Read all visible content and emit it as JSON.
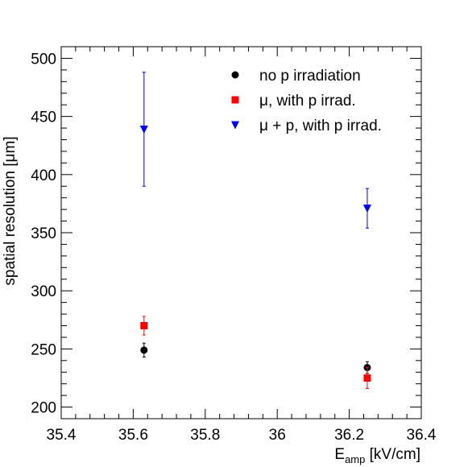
{
  "chart_data": {
    "type": "scatter",
    "xlabel": {
      "main": "E",
      "sub": "amp",
      "unit": " [kV/cm]"
    },
    "ylabel": "spatial resolution [μm]",
    "xlim": [
      35.4,
      36.4
    ],
    "ylim": [
      190,
      510
    ],
    "x_ticks": [
      "35.4",
      "35.6",
      "35.8",
      "36",
      "36.2",
      "36.4"
    ],
    "x_tick_values": [
      35.4,
      35.6,
      35.8,
      36.0,
      36.2,
      36.4
    ],
    "y_ticks": [
      "200",
      "250",
      "300",
      "350",
      "400",
      "450",
      "500"
    ],
    "y_tick_values": [
      200,
      250,
      300,
      350,
      400,
      450,
      500
    ],
    "grid": false,
    "legend_position": "top-right",
    "series": [
      {
        "name": "no p irradiation",
        "marker": "circle",
        "color": "#000000",
        "points": [
          {
            "x": 35.63,
            "y": 249,
            "err": 6
          },
          {
            "x": 36.25,
            "y": 234,
            "err": 5
          }
        ]
      },
      {
        "name": "μ, with p irrad.",
        "marker": "square",
        "color": "#ff0000",
        "points": [
          {
            "x": 35.63,
            "y": 270,
            "err": 8
          },
          {
            "x": 36.25,
            "y": 225,
            "err": 9
          }
        ]
      },
      {
        "name": "μ + p, with p irrad.",
        "marker": "triangle-down",
        "color": "#0000ff",
        "points": [
          {
            "x": 35.63,
            "y": 439,
            "err": 49
          },
          {
            "x": 36.25,
            "y": 371,
            "err": 17
          }
        ]
      }
    ]
  }
}
